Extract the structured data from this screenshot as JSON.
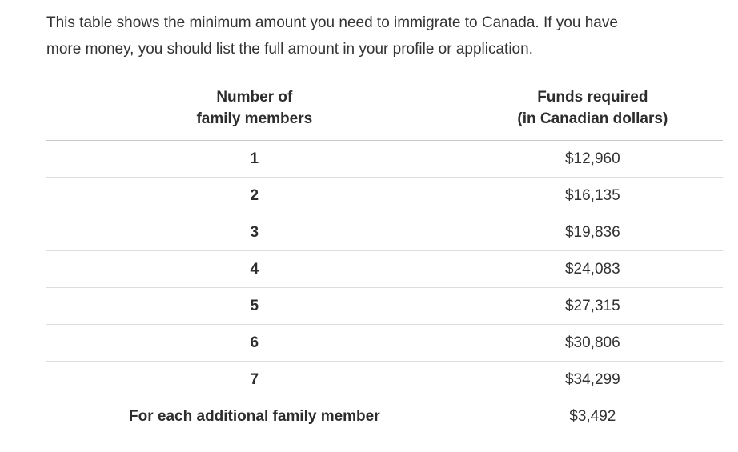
{
  "intro": {
    "text": "This table shows the minimum amount you need to immigrate to Canada. If you have\nmore money, you should list the full amount in your profile or application."
  },
  "table": {
    "headers": {
      "members": "Number of\nfamily members",
      "funds": "Funds required\n(in Canadian dollars)"
    },
    "rows": [
      {
        "members": "1",
        "funds": "$12,960"
      },
      {
        "members": "2",
        "funds": "$16,135"
      },
      {
        "members": "3",
        "funds": "$19,836"
      },
      {
        "members": "4",
        "funds": "$24,083"
      },
      {
        "members": "5",
        "funds": "$27,315"
      },
      {
        "members": "6",
        "funds": "$30,806"
      },
      {
        "members": "7",
        "funds": "$34,299"
      },
      {
        "members": "For each additional family member",
        "funds": "$3,492"
      }
    ]
  },
  "colors": {
    "background": "#ffffff",
    "body_text": "#333333",
    "bold_text": "#2d2d2d",
    "header_border": "#c9c9c9",
    "row_border": "#dddddd"
  },
  "chart_data": {
    "type": "table",
    "title": "",
    "columns": [
      "Number of family members",
      "Funds required (in Canadian dollars)"
    ],
    "categories": [
      "1",
      "2",
      "3",
      "4",
      "5",
      "6",
      "7",
      "For each additional family member"
    ],
    "values": [
      12960,
      16135,
      19836,
      24083,
      27315,
      30806,
      34299,
      3492
    ]
  }
}
